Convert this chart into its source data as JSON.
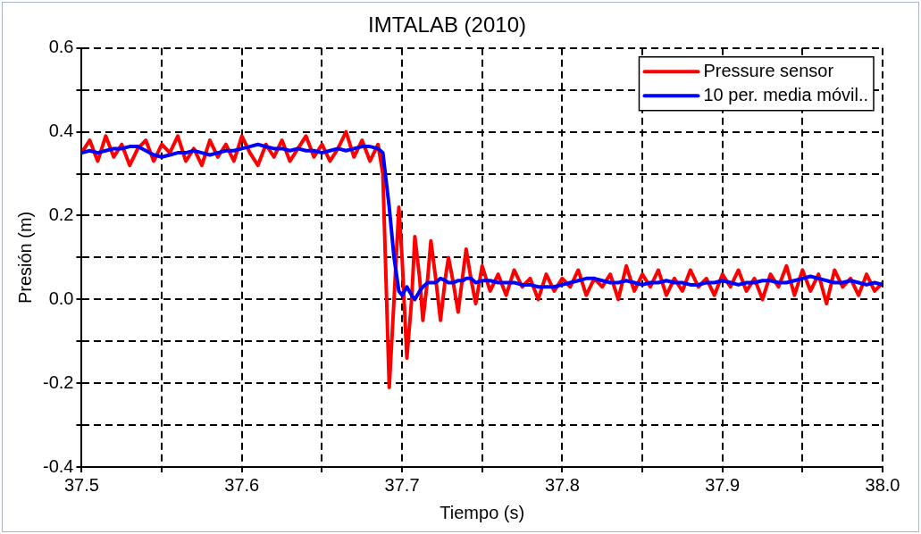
{
  "chart_data": {
    "type": "line",
    "title": "IMTALAB (2010)",
    "xlabel": "Tiempo (s)",
    "ylabel": "Presión (m)",
    "x": [
      37.5,
      37.505,
      37.51,
      37.515,
      37.52,
      37.525,
      37.53,
      37.535,
      37.54,
      37.545,
      37.55,
      37.555,
      37.56,
      37.565,
      37.57,
      37.575,
      37.58,
      37.585,
      37.59,
      37.595,
      37.6,
      37.605,
      37.61,
      37.615,
      37.62,
      37.625,
      37.63,
      37.635,
      37.64,
      37.645,
      37.65,
      37.655,
      37.66,
      37.665,
      37.67,
      37.675,
      37.68,
      37.685,
      37.688,
      37.692,
      37.695,
      37.698,
      37.7,
      37.703,
      37.706,
      37.708,
      37.711,
      37.713,
      37.716,
      37.718,
      37.721,
      37.724,
      37.727,
      37.729,
      37.732,
      37.735,
      37.738,
      37.74,
      37.743,
      37.746,
      37.75,
      37.755,
      37.76,
      37.765,
      37.77,
      37.775,
      37.78,
      37.785,
      37.79,
      37.795,
      37.8,
      37.805,
      37.81,
      37.815,
      37.82,
      37.825,
      37.83,
      37.835,
      37.84,
      37.845,
      37.85,
      37.855,
      37.86,
      37.865,
      37.87,
      37.875,
      37.88,
      37.885,
      37.89,
      37.895,
      37.9,
      37.905,
      37.91,
      37.915,
      37.92,
      37.925,
      37.93,
      37.935,
      37.94,
      37.945,
      37.95,
      37.955,
      37.96,
      37.965,
      37.97,
      37.975,
      37.98,
      37.985,
      37.99,
      37.995,
      38.0
    ],
    "series": [
      {
        "name": "Pressure sensor",
        "color": "#ff0000",
        "values": [
          0.35,
          0.38,
          0.33,
          0.39,
          0.34,
          0.37,
          0.32,
          0.36,
          0.38,
          0.33,
          0.37,
          0.35,
          0.39,
          0.33,
          0.36,
          0.32,
          0.38,
          0.34,
          0.37,
          0.33,
          0.39,
          0.35,
          0.32,
          0.37,
          0.34,
          0.38,
          0.33,
          0.36,
          0.39,
          0.34,
          0.37,
          0.33,
          0.36,
          0.4,
          0.34,
          0.38,
          0.33,
          0.37,
          0.3,
          -0.21,
          0.0,
          0.22,
          0.1,
          -0.14,
          0.0,
          0.15,
          0.05,
          -0.05,
          0.05,
          0.14,
          0.05,
          -0.05,
          0.05,
          0.1,
          0.04,
          -0.03,
          0.06,
          0.12,
          0.05,
          -0.01,
          0.08,
          0.02,
          0.06,
          0.01,
          0.07,
          0.03,
          0.05,
          0.0,
          0.06,
          0.02,
          0.05,
          0.03,
          0.07,
          0.01,
          0.05,
          0.03,
          0.06,
          0.0,
          0.08,
          0.02,
          0.06,
          0.03,
          0.07,
          0.01,
          0.05,
          0.02,
          0.07,
          0.03,
          0.05,
          0.01,
          0.06,
          0.03,
          0.07,
          0.02,
          0.05,
          0.0,
          0.06,
          0.03,
          0.08,
          0.01,
          0.07,
          0.02,
          0.06,
          -0.01,
          0.07,
          0.03,
          0.05,
          0.01,
          0.06,
          0.02,
          0.04
        ]
      },
      {
        "name": "10 per. media móvil..",
        "color": "#0000ff",
        "values": [
          0.35,
          0.355,
          0.35,
          0.355,
          0.36,
          0.36,
          0.365,
          0.365,
          0.355,
          0.345,
          0.34,
          0.345,
          0.35,
          0.35,
          0.355,
          0.35,
          0.345,
          0.35,
          0.355,
          0.355,
          0.36,
          0.365,
          0.37,
          0.365,
          0.36,
          0.36,
          0.355,
          0.36,
          0.355,
          0.355,
          0.35,
          0.355,
          0.36,
          0.355,
          0.36,
          0.365,
          0.365,
          0.36,
          0.35,
          0.22,
          0.1,
          0.02,
          0.01,
          0.03,
          0.01,
          0.0,
          0.02,
          0.03,
          0.04,
          0.04,
          0.04,
          0.05,
          0.045,
          0.04,
          0.04,
          0.045,
          0.045,
          0.05,
          0.05,
          0.04,
          0.045,
          0.045,
          0.04,
          0.04,
          0.04,
          0.035,
          0.035,
          0.03,
          0.03,
          0.03,
          0.035,
          0.04,
          0.045,
          0.05,
          0.05,
          0.045,
          0.04,
          0.04,
          0.045,
          0.04,
          0.035,
          0.04,
          0.04,
          0.045,
          0.04,
          0.04,
          0.035,
          0.035,
          0.04,
          0.04,
          0.045,
          0.04,
          0.035,
          0.04,
          0.04,
          0.045,
          0.045,
          0.04,
          0.04,
          0.045,
          0.05,
          0.055,
          0.05,
          0.045,
          0.04,
          0.04,
          0.045,
          0.04,
          0.035,
          0.04,
          0.035
        ]
      }
    ],
    "xlim": [
      37.5,
      38.0
    ],
    "xticks": [
      37.5,
      {
        "value": 37.55,
        "label": null
      },
      37.6,
      {
        "value": 37.65,
        "label": null
      },
      37.7,
      {
        "value": 37.75,
        "label": null
      },
      37.8,
      {
        "value": 37.85,
        "label": null
      },
      37.9,
      {
        "value": 37.95,
        "label": null
      },
      {
        "value": 38.0,
        "label": "38.0"
      }
    ],
    "ylim": [
      -0.4,
      0.6
    ],
    "yticks": [
      {
        "value": -0.4,
        "label": "-0.4"
      },
      {
        "value": -0.3,
        "label": null
      },
      {
        "value": -0.2,
        "label": "-0.2"
      },
      {
        "value": -0.1,
        "label": null
      },
      {
        "value": 0,
        "label": "0.0"
      },
      {
        "value": 0.1,
        "label": null
      },
      0.2,
      {
        "value": 0.3,
        "label": null
      },
      0.4,
      {
        "value": 0.5,
        "label": null
      },
      0.6
    ],
    "grid": true,
    "legend": "top right",
    "marker": "none",
    "line_style": "solid"
  }
}
